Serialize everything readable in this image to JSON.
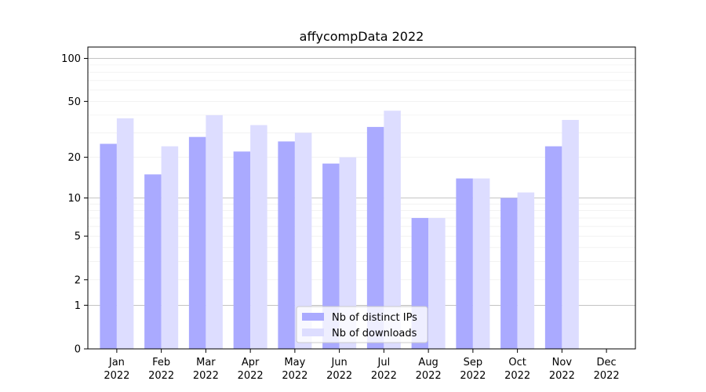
{
  "chart_data": {
    "type": "bar",
    "title": "affycompData 2022",
    "xlabel": "",
    "ylabel": "",
    "yscale": "log1p",
    "ylim": [
      0,
      120
    ],
    "yticks": [
      0,
      1,
      2,
      5,
      10,
      20,
      50,
      100
    ],
    "ytick_labels": [
      "0",
      "1",
      "2",
      "5",
      "10",
      "20",
      "50",
      "100"
    ],
    "categories": [
      [
        "Jan",
        "2022"
      ],
      [
        "Feb",
        "2022"
      ],
      [
        "Mar",
        "2022"
      ],
      [
        "Apr",
        "2022"
      ],
      [
        "May",
        "2022"
      ],
      [
        "Jun",
        "2022"
      ],
      [
        "Jul",
        "2022"
      ],
      [
        "Aug",
        "2022"
      ],
      [
        "Sep",
        "2022"
      ],
      [
        "Oct",
        "2022"
      ],
      [
        "Nov",
        "2022"
      ],
      [
        "Dec",
        "2022"
      ]
    ],
    "series": [
      {
        "name": "Nb of distinct IPs",
        "color": "#aaaaff",
        "values": [
          25,
          15,
          28,
          22,
          26,
          18,
          33,
          7,
          14,
          10,
          24,
          0
        ]
      },
      {
        "name": "Nb of downloads",
        "color": "#ddddff",
        "values": [
          38,
          24,
          40,
          34,
          30,
          20,
          43,
          7,
          14,
          11,
          37,
          0
        ]
      }
    ],
    "grid": true,
    "legend_position": "bottom-center"
  }
}
